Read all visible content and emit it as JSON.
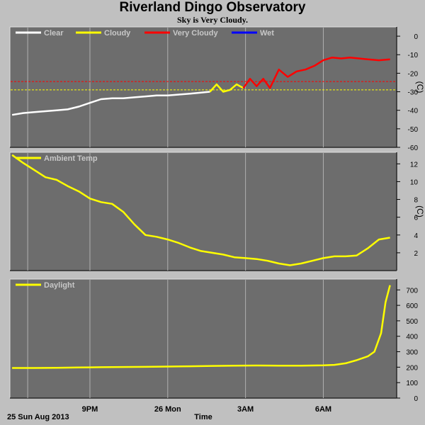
{
  "title": "Riverland Dingo Observatory",
  "subtitle": "Sky is Very Cloudy.",
  "footer": {
    "date_label": "25 Sun Aug 2013",
    "time_label": "Time"
  },
  "colors": {
    "clear": "#ffffff",
    "cloudy": "#ffff00",
    "very_cloudy": "#ff0000",
    "wet": "#0000ff",
    "panel_bg": "#6d6d6d",
    "grid": "#b0b0b0",
    "page_bg": "#c0c0c0"
  },
  "chart_data": [
    {
      "type": "line",
      "panel": "sky",
      "legend": [
        "Clear",
        "Cloudy",
        "Very Cloudy",
        "Wet"
      ],
      "ylabel": "(C)",
      "yticks": [
        0,
        -10,
        -20,
        -30,
        -40,
        -50,
        -60
      ],
      "ylim": [
        -60,
        5
      ],
      "threshold_lines": [
        {
          "value": -24.5,
          "color": "#ff0000"
        },
        {
          "value": -29,
          "color": "#ffff00"
        }
      ],
      "series": [
        {
          "name": "Clear",
          "x": [
            0,
            0.5,
            1,
            1.5,
            2,
            2.5,
            3,
            3.5,
            4,
            4.5,
            5,
            5.5,
            6,
            6.5,
            7,
            7.5,
            8,
            8.5,
            8.9
          ],
          "values": [
            -42.5,
            -41.5,
            -41,
            -40.5,
            -40,
            -39.5,
            -38,
            -36,
            -34,
            -33.5,
            -33.5,
            -33,
            -32.5,
            -32,
            -32,
            -31.5,
            -31,
            -30.5,
            -30
          ]
        },
        {
          "name": "Cloudy",
          "x": [
            8.9,
            9.2,
            9.5,
            9.8,
            10.1,
            10.4
          ],
          "values": [
            -30,
            -26,
            -30,
            -29,
            -26,
            -28
          ]
        },
        {
          "name": "Very Cloudy",
          "x": [
            10.4,
            10.7,
            11,
            11.3,
            11.6,
            12,
            12.4,
            12.8,
            13.2,
            13.6,
            14,
            14.4,
            14.8,
            15.2,
            15.6,
            16,
            16.5,
            17
          ],
          "values": [
            -28,
            -23,
            -27,
            -23,
            -28,
            -18,
            -22,
            -19,
            -18,
            -16,
            -13,
            -11.5,
            -12,
            -11.5,
            -12,
            -12.5,
            -13,
            -12.5
          ]
        }
      ]
    },
    {
      "type": "line",
      "panel": "ambient",
      "legend": [
        "Ambient Temp"
      ],
      "ylabel": "(C)",
      "yticks": [
        2,
        4,
        6,
        8,
        10,
        12
      ],
      "ylim": [
        0,
        13.3
      ],
      "series": [
        {
          "name": "Ambient Temp",
          "x": [
            0,
            0.5,
            1,
            1.5,
            2,
            2.5,
            3,
            3.5,
            4,
            4.5,
            5,
            5.5,
            6,
            6.5,
            7,
            7.5,
            8,
            8.5,
            9,
            9.5,
            10,
            10.5,
            11,
            11.5,
            12,
            12.5,
            13,
            13.5,
            14,
            14.5,
            15,
            15.5,
            16,
            16.5,
            17
          ],
          "values": [
            13,
            12.1,
            11.3,
            10.5,
            10.2,
            9.5,
            8.9,
            8.1,
            7.7,
            7.5,
            6.6,
            5.2,
            4.0,
            3.8,
            3.5,
            3.1,
            2.6,
            2.2,
            2.0,
            1.8,
            1.5,
            1.4,
            1.3,
            1.1,
            0.8,
            0.6,
            0.8,
            1.1,
            1.4,
            1.6,
            1.6,
            1.7,
            2.5,
            3.5,
            3.7
          ]
        }
      ]
    },
    {
      "type": "line",
      "panel": "daylight",
      "legend": [
        "Daylight"
      ],
      "yticks": [
        0,
        100,
        200,
        300,
        400,
        500,
        600,
        700
      ],
      "ylim": [
        0,
        770
      ],
      "series": [
        {
          "name": "Daylight",
          "x": [
            0,
            1,
            2,
            3,
            4,
            5,
            6,
            7,
            8,
            9,
            10,
            11,
            12,
            13,
            14,
            14.5,
            15,
            15.5,
            16,
            16.3,
            16.6,
            16.8,
            17
          ],
          "values": [
            195,
            195,
            196,
            198,
            200,
            201,
            202,
            204,
            206,
            208,
            210,
            211,
            210,
            210,
            212,
            215,
            225,
            245,
            270,
            300,
            420,
            620,
            730
          ]
        }
      ]
    }
  ],
  "x_axis": {
    "tick_labels": [
      {
        "x": 3.5,
        "label": "9PM"
      },
      {
        "x": 7,
        "label": "26 Mon"
      },
      {
        "x": 10.5,
        "label": "3AM"
      },
      {
        "x": 14,
        "label": "6AM"
      }
    ],
    "grid": [
      0.7,
      3.5,
      7,
      10.5,
      14
    ],
    "range": [
      -0.1,
      17.3
    ]
  }
}
